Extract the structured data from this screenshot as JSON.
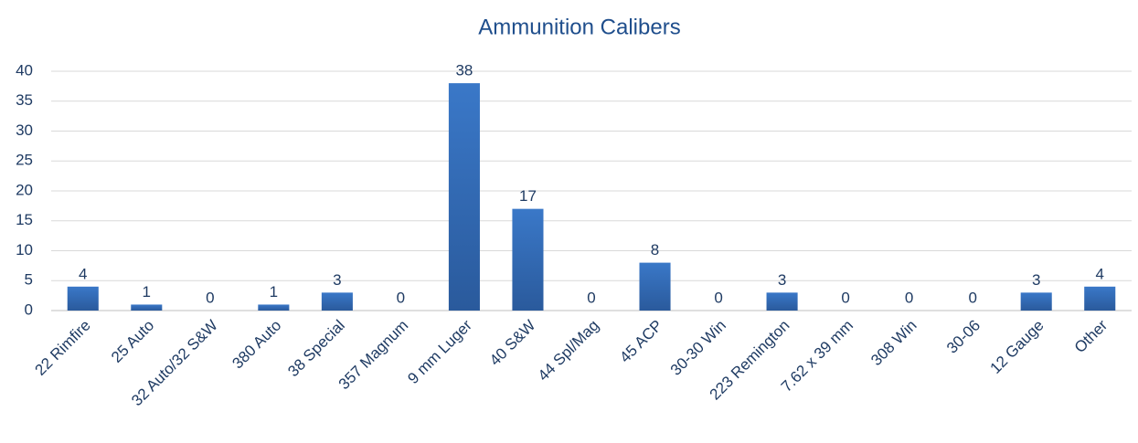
{
  "chart_data": {
    "type": "bar",
    "title": "Ammunition Calibers",
    "categories": [
      "22 Rimfire",
      "25 Auto",
      "32 Auto/32 S&W",
      "380 Auto",
      "38 Special",
      "357 Magnum",
      "9 mm Luger",
      "40 S&W",
      "44 Spl/Mag",
      "45 ACP",
      "30-30 Win",
      "223 Remington",
      "7.62 x 39 mm",
      "308 Win",
      "30-06",
      "12 Gauge",
      "Other"
    ],
    "values": [
      4,
      1,
      0,
      1,
      3,
      0,
      38,
      17,
      0,
      8,
      0,
      3,
      0,
      0,
      0,
      3,
      4
    ],
    "color": "#3a78c8",
    "ylim": [
      0,
      40
    ],
    "yticks": [
      0,
      5,
      10,
      15,
      20,
      25,
      30,
      35,
      40
    ],
    "grid": true
  }
}
